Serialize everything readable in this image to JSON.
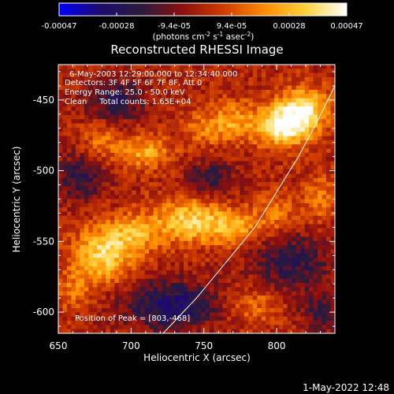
{
  "colorbar": {
    "tick_labels": [
      "-0.00047",
      "-0.00028",
      "-9.4e-05",
      "9.4e-05",
      "0.00028",
      "0.00047"
    ],
    "unit_label": "(photons cm",
    "unit_exp1": "-2",
    "unit_mid": " s",
    "unit_exp2": "-1",
    "unit_end": " asec",
    "unit_exp3": "-2",
    "unit_close": ")",
    "colormap_stops": [
      "#0000ff",
      "#1e0a6e",
      "#2a1b3c",
      "#8b0f0f",
      "#cf3c00",
      "#ff8c00",
      "#ffd23c",
      "#ffffff"
    ]
  },
  "chart_data": {
    "type": "heatmap",
    "title": "Reconstructed RHESSI Image",
    "xlabel": "Heliocentric X (arcsec)",
    "ylabel": "Heliocentric Y (arcsec)",
    "xlim": [
      650,
      840
    ],
    "ylim": [
      -615,
      -425
    ],
    "x_ticks": [
      650,
      700,
      750,
      800
    ],
    "y_ticks": [
      -450,
      -500,
      -550,
      -600
    ],
    "x_tick_labels": [
      "650",
      "700",
      "750",
      "800"
    ],
    "y_tick_labels": [
      "-450",
      "-500",
      "-550",
      "-600"
    ],
    "value_range": [
      -0.00047,
      0.00047
    ],
    "annotations": [
      "6-May-2003 12:29:00.000 to 12:34:40.000",
      "Detectors: 3F 4F 5F 6F 7F 8F, Att 0",
      "Energy Range: 25.0 - 50.0 keV",
      "Clean     Total counts: 1.65E+04"
    ],
    "peak_label": "Position of Peak = [803,-468]",
    "peak_position": [
      803,
      -468
    ],
    "limb_arc": [
      [
        722,
        -615
      ],
      [
        745,
        -590
      ],
      [
        765,
        -565
      ],
      [
        785,
        -540
      ],
      [
        800,
        -515
      ],
      [
        815,
        -490
      ],
      [
        828,
        -465
      ],
      [
        840,
        -440
      ]
    ],
    "bright_regions": [
      {
        "x": 805,
        "y": -468,
        "sx": 14,
        "sy": 10,
        "amp": 1.0
      },
      {
        "x": 820,
        "y": -455,
        "sx": 12,
        "sy": 10,
        "amp": 0.7
      },
      {
        "x": 770,
        "y": -465,
        "sx": 10,
        "sy": 10,
        "amp": 0.45
      },
      {
        "x": 750,
        "y": -470,
        "sx": 10,
        "sy": 9,
        "amp": 0.35
      },
      {
        "x": 710,
        "y": -487,
        "sx": 12,
        "sy": 8,
        "amp": 0.55
      },
      {
        "x": 680,
        "y": -480,
        "sx": 9,
        "sy": 9,
        "amp": 0.35
      },
      {
        "x": 738,
        "y": -535,
        "sx": 16,
        "sy": 11,
        "amp": 0.7
      },
      {
        "x": 702,
        "y": -545,
        "sx": 12,
        "sy": 10,
        "amp": 0.5
      },
      {
        "x": 770,
        "y": -540,
        "sx": 14,
        "sy": 9,
        "amp": 0.55
      },
      {
        "x": 680,
        "y": -560,
        "sx": 14,
        "sy": 14,
        "amp": 0.75
      },
      {
        "x": 800,
        "y": -530,
        "sx": 10,
        "sy": 10,
        "amp": 0.35
      },
      {
        "x": 660,
        "y": -585,
        "sx": 8,
        "sy": 10,
        "amp": 0.3
      },
      {
        "x": 785,
        "y": -595,
        "sx": 14,
        "sy": 10,
        "amp": 0.35
      },
      {
        "x": 830,
        "y": -520,
        "sx": 8,
        "sy": 12,
        "amp": 0.35
      }
    ],
    "negative_regions": [
      {
        "x": 690,
        "y": -450,
        "sx": 14,
        "sy": 10,
        "amp": 0.5
      },
      {
        "x": 665,
        "y": -505,
        "sx": 12,
        "sy": 12,
        "amp": 0.45
      },
      {
        "x": 728,
        "y": -595,
        "sx": 24,
        "sy": 12,
        "amp": 0.65
      },
      {
        "x": 810,
        "y": -565,
        "sx": 20,
        "sy": 16,
        "amp": 0.45
      },
      {
        "x": 755,
        "y": -505,
        "sx": 12,
        "sy": 9,
        "amp": 0.4
      },
      {
        "x": 830,
        "y": -600,
        "sx": 10,
        "sy": 10,
        "amp": 0.35
      }
    ]
  },
  "footer": {
    "date": "1-May-2022 12:48"
  }
}
